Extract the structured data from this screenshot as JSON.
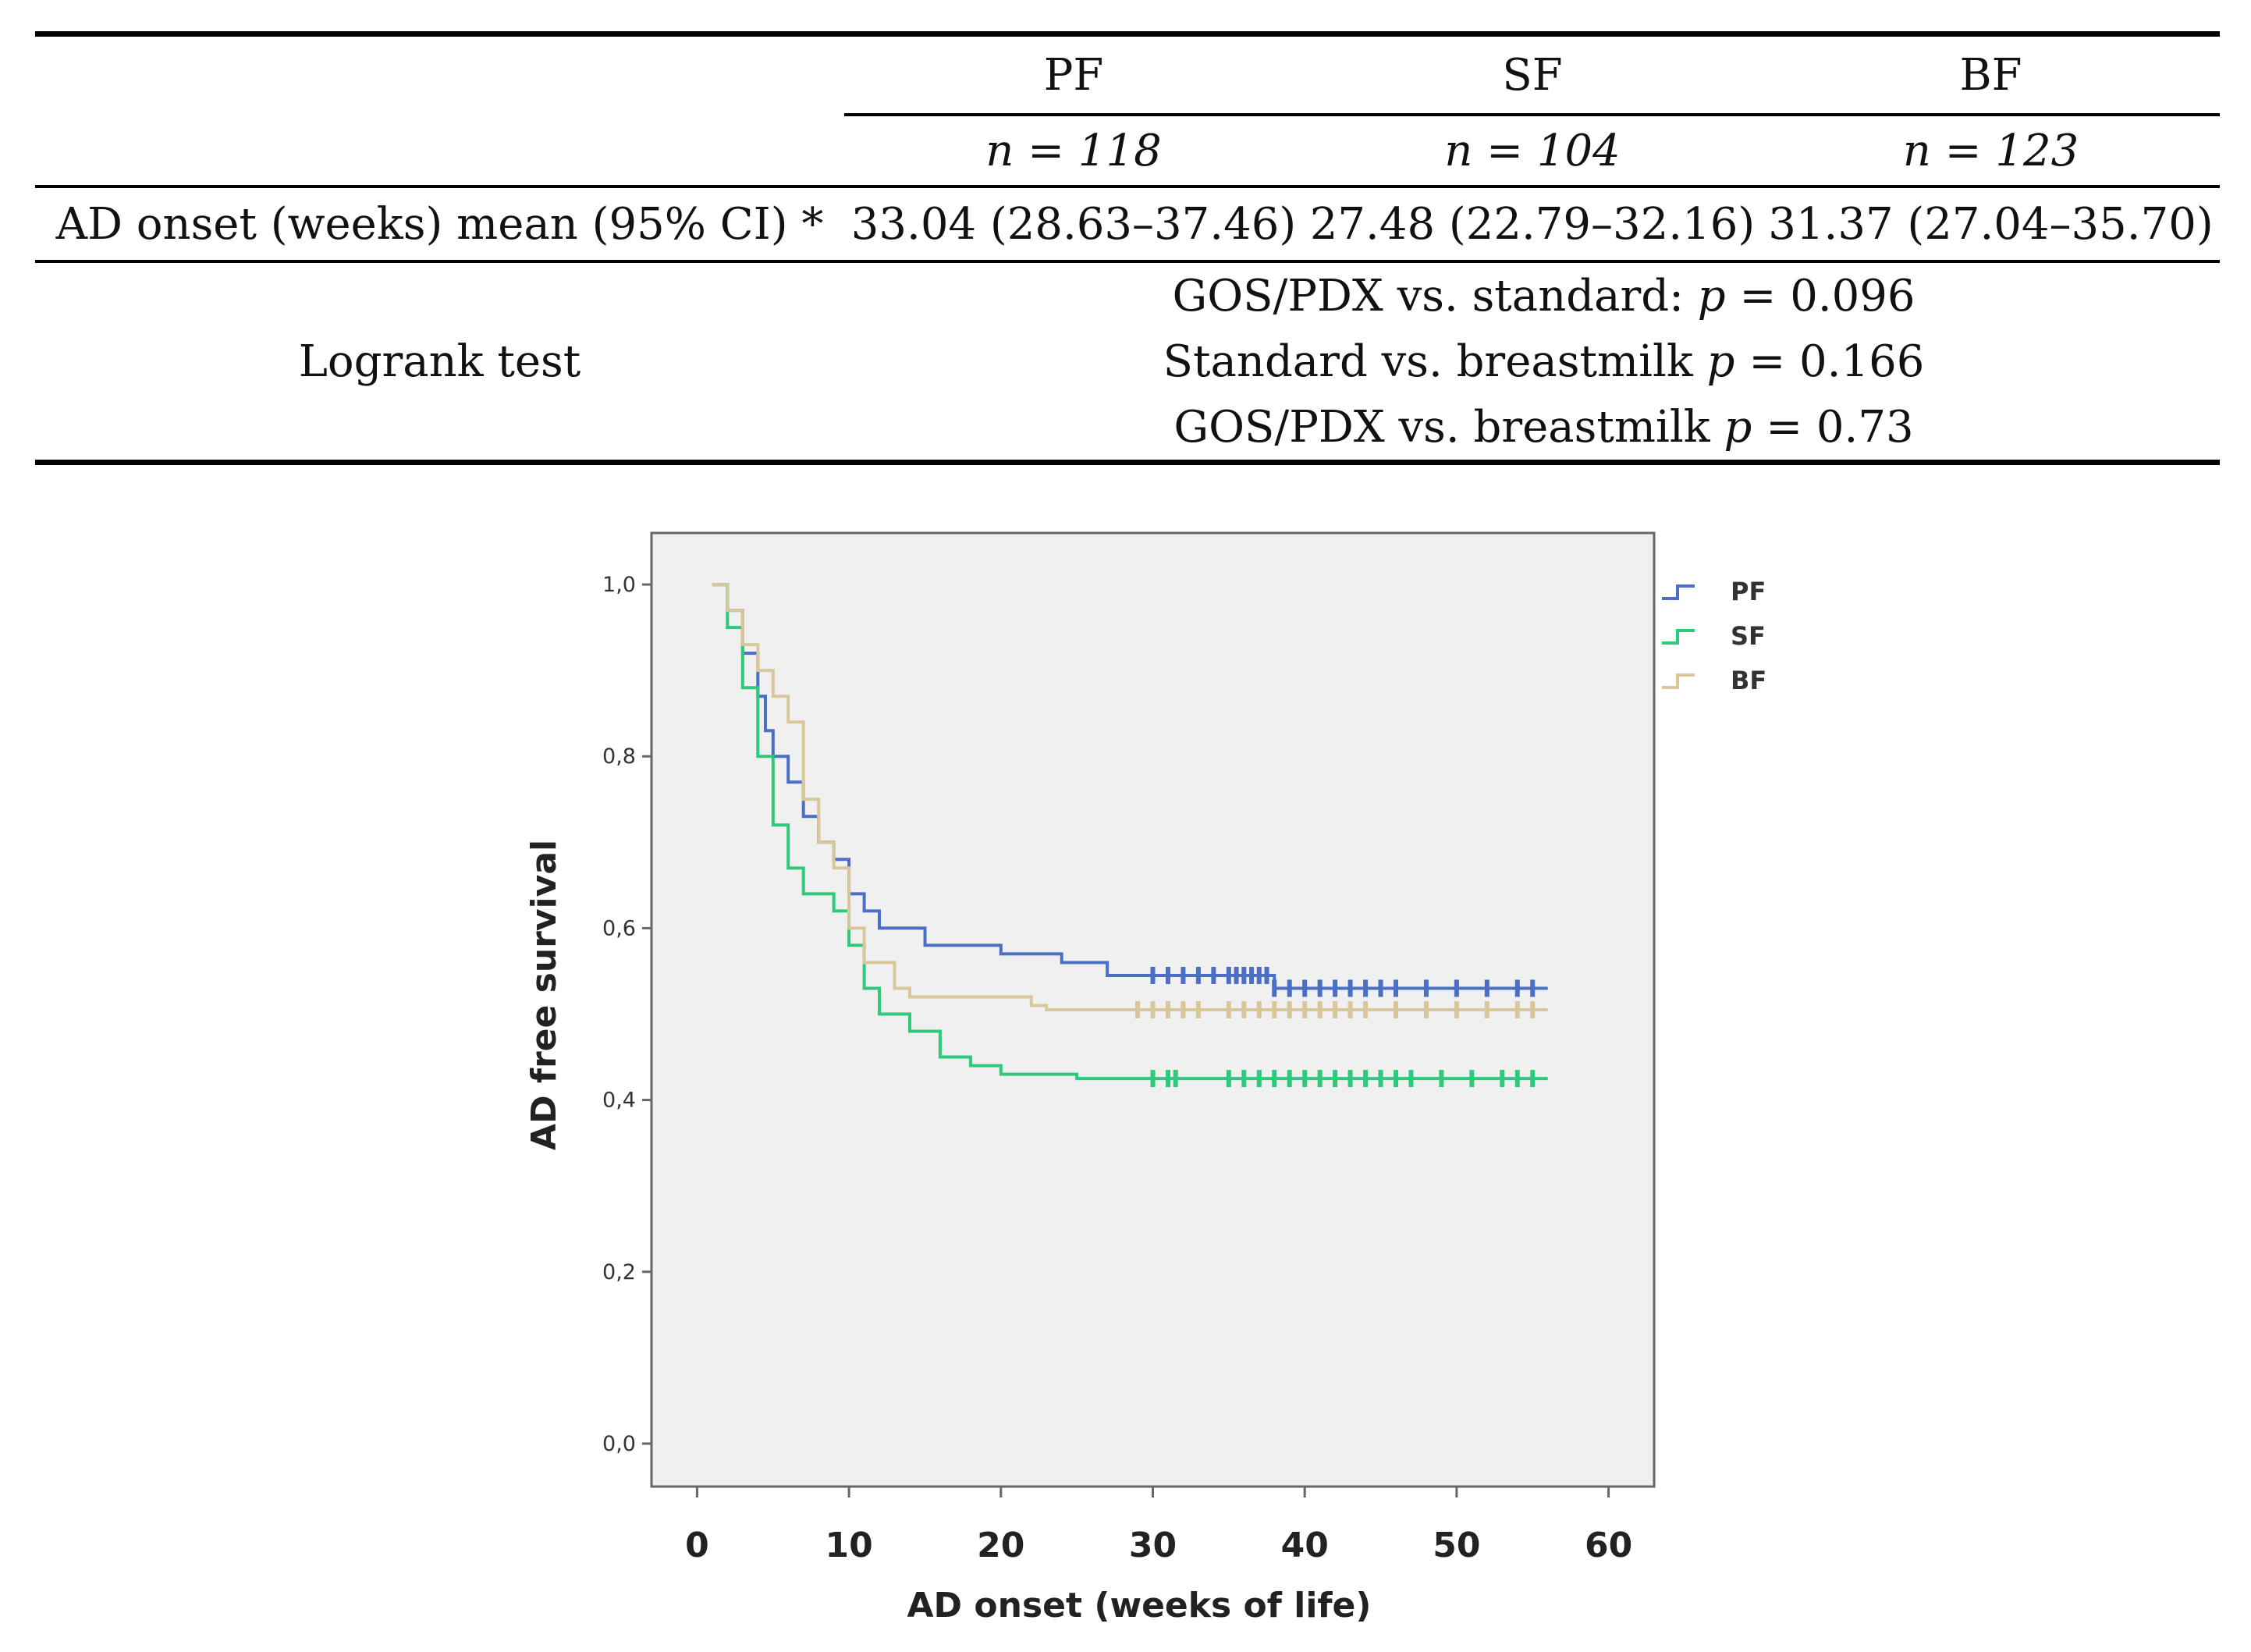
{
  "table": {
    "groups": [
      "PF",
      "SF",
      "BF"
    ],
    "n_values": [
      "n = 118",
      "n = 104",
      "n = 123"
    ],
    "ad_onset_label": "AD onset (weeks) mean (95% CI) *",
    "ad_onset_values": [
      "33.04 (28.63–37.46)",
      "27.48 (22.79–32.16)",
      "31.37 (27.04–35.70)"
    ],
    "logrank_label": "Logrank test",
    "logrank": [
      {
        "comparison": "GOS/PDX vs. standard:",
        "p_label": "p",
        "p_value": "= 0.096"
      },
      {
        "comparison": "Standard vs. breastmilk",
        "p_label": "p",
        "p_value": "= 0.166"
      },
      {
        "comparison": "GOS/PDX vs. breastmilk",
        "p_label": "p",
        "p_value": "= 0.73"
      }
    ]
  },
  "chart_data": {
    "type": "line",
    "title": "",
    "xlabel": "AD onset (weeks of life)",
    "ylabel": "AD free survival",
    "xlim": [
      -3,
      63
    ],
    "ylim": [
      -0.05,
      1.06
    ],
    "x_ticks": [
      0,
      10,
      20,
      30,
      40,
      50,
      60
    ],
    "x_tick_labels": [
      "0",
      "10",
      "20",
      "30",
      "40",
      "50",
      "60"
    ],
    "y_ticks": [
      0,
      0.2,
      0.4,
      0.6,
      0.8,
      1.0
    ],
    "y_tick_labels": [
      "0,0",
      "0,2",
      "0,4",
      "0,6",
      "0,8",
      "1,0"
    ],
    "legend_position": "top-right",
    "series": [
      {
        "name": "PF",
        "color": "#4a6fc4",
        "steps": [
          [
            1,
            1.0
          ],
          [
            2,
            0.97
          ],
          [
            3,
            0.92
          ],
          [
            4,
            0.87
          ],
          [
            4.5,
            0.83
          ],
          [
            5,
            0.8
          ],
          [
            6,
            0.77
          ],
          [
            7,
            0.73
          ],
          [
            8,
            0.7
          ],
          [
            9,
            0.68
          ],
          [
            10,
            0.64
          ],
          [
            11,
            0.62
          ],
          [
            12,
            0.6
          ],
          [
            15,
            0.58
          ],
          [
            20,
            0.57
          ],
          [
            24,
            0.56
          ],
          [
            27,
            0.545
          ],
          [
            38,
            0.53
          ]
        ],
        "end_x": 56,
        "censored": [
          30,
          31,
          32,
          33,
          34,
          35,
          35.5,
          36,
          36.5,
          37,
          37.5,
          38,
          39,
          40,
          41,
          42,
          43,
          44,
          45,
          46,
          48,
          50,
          52,
          54,
          55
        ]
      },
      {
        "name": "SF",
        "color": "#2ec97a",
        "steps": [
          [
            1,
            1.0
          ],
          [
            2,
            0.95
          ],
          [
            3,
            0.88
          ],
          [
            4,
            0.8
          ],
          [
            5,
            0.72
          ],
          [
            6,
            0.67
          ],
          [
            7,
            0.64
          ],
          [
            9,
            0.62
          ],
          [
            10,
            0.58
          ],
          [
            11,
            0.53
          ],
          [
            12,
            0.5
          ],
          [
            14,
            0.48
          ],
          [
            16,
            0.45
          ],
          [
            18,
            0.44
          ],
          [
            20,
            0.43
          ],
          [
            25,
            0.425
          ]
        ],
        "end_x": 56,
        "censored": [
          30,
          31,
          31.5,
          35,
          36,
          37,
          38,
          39,
          40,
          41,
          42,
          43,
          44,
          45,
          46,
          47,
          49,
          51,
          53,
          54,
          55
        ]
      },
      {
        "name": "BF",
        "color": "#d8c79a",
        "steps": [
          [
            1,
            1.0
          ],
          [
            2,
            0.97
          ],
          [
            3,
            0.93
          ],
          [
            4,
            0.9
          ],
          [
            5,
            0.87
          ],
          [
            6,
            0.84
          ],
          [
            7,
            0.75
          ],
          [
            8,
            0.7
          ],
          [
            9,
            0.67
          ],
          [
            10,
            0.6
          ],
          [
            11,
            0.56
          ],
          [
            13,
            0.53
          ],
          [
            14,
            0.52
          ],
          [
            22,
            0.51
          ],
          [
            23,
            0.505
          ],
          [
            27,
            0.505
          ]
        ],
        "end_x": 56,
        "censored": [
          29,
          30,
          31,
          32,
          33,
          35,
          36,
          37,
          38,
          39,
          40,
          41,
          42,
          43,
          44,
          46,
          48,
          50,
          52,
          54,
          55
        ]
      }
    ]
  }
}
